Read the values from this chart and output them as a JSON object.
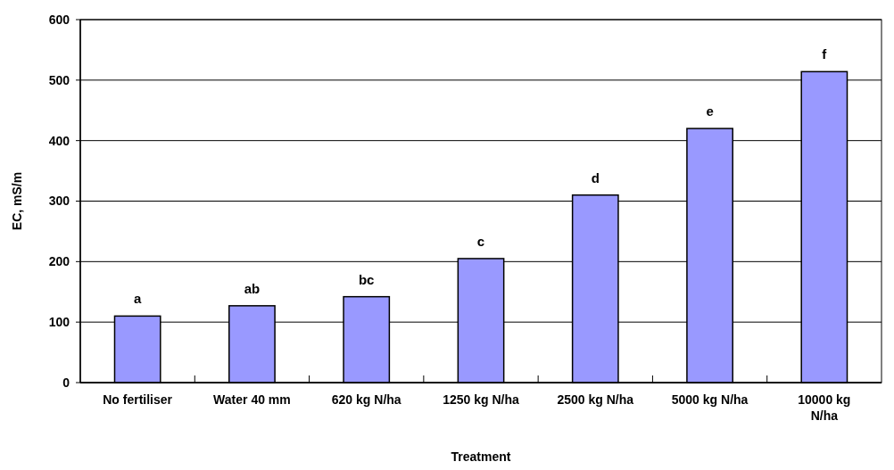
{
  "chart_data": {
    "type": "bar",
    "xlabel": "Treatment",
    "ylabel": "EC, mS/m",
    "categories": [
      "No fertiliser",
      "Water 40 mm",
      "620 kg N/ha",
      "1250 kg N/ha",
      "2500 kg N/ha",
      "5000 kg N/ha",
      "10000 kg N/ha"
    ],
    "values": [
      110,
      127,
      142,
      205,
      310,
      420,
      514
    ],
    "color": "#9999ff",
    "ylim": [
      0,
      600
    ],
    "yticks": [
      0,
      100,
      200,
      300,
      400,
      500,
      600
    ],
    "grid": "y",
    "annotations": [
      {
        "text": "a",
        "x": "No fertiliser",
        "y": 110
      },
      {
        "text": "ab",
        "x": "Water 40 mm",
        "y": 127
      },
      {
        "text": "bc",
        "x": "620 kg N/ha",
        "y": 142
      },
      {
        "text": "c",
        "x": "1250 kg N/ha",
        "y": 205
      },
      {
        "text": "d",
        "x": "2500 kg N/ha",
        "y": 310
      },
      {
        "text": "e",
        "x": "5000 kg N/ha",
        "y": 420
      },
      {
        "text": "f",
        "x": "10000 kg N/ha",
        "y": 514
      }
    ]
  }
}
